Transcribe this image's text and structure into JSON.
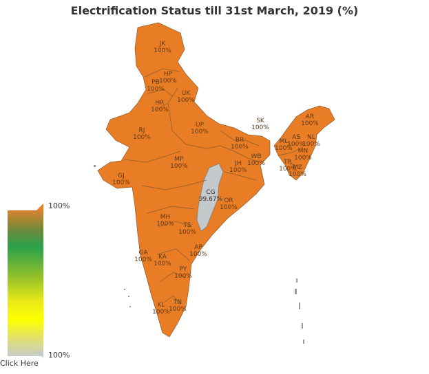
{
  "title": "Electrification Status till 31st March, 2019 (%)",
  "legend": {
    "max_label": "100%",
    "min_label": "100%",
    "click_label": "Click Here"
  },
  "colors": {
    "full": "#e87d25",
    "partial": "#c4c9cc"
  },
  "states": [
    {
      "code": "JK",
      "value": "100%"
    },
    {
      "code": "HP",
      "value": "100%"
    },
    {
      "code": "PB",
      "value": "100%"
    },
    {
      "code": "UK",
      "value": "100%"
    },
    {
      "code": "HR",
      "value": "100%"
    },
    {
      "code": "RJ",
      "value": "100%"
    },
    {
      "code": "UP",
      "value": "100%"
    },
    {
      "code": "SK",
      "value": "100%"
    },
    {
      "code": "AR",
      "value": "100%"
    },
    {
      "code": "BR",
      "value": "100%"
    },
    {
      "code": "AS",
      "value": "100%"
    },
    {
      "code": "NL",
      "value": "100%"
    },
    {
      "code": "ML",
      "value": "100%"
    },
    {
      "code": "MN",
      "value": "100%"
    },
    {
      "code": "WB",
      "value": "100%"
    },
    {
      "code": "TR",
      "value": "100%"
    },
    {
      "code": "MZ",
      "value": "100%"
    },
    {
      "code": "JH",
      "value": "100%"
    },
    {
      "code": "MP",
      "value": "100%"
    },
    {
      "code": "GJ",
      "value": "100%"
    },
    {
      "code": "CG",
      "value": "99.67%"
    },
    {
      "code": "OR",
      "value": "100%"
    },
    {
      "code": "MH",
      "value": "100%"
    },
    {
      "code": "TS",
      "value": "100%"
    },
    {
      "code": "AP",
      "value": "100%"
    },
    {
      "code": "GA",
      "value": "100%"
    },
    {
      "code": "KA",
      "value": "100%"
    },
    {
      "code": "PY",
      "value": "100%"
    },
    {
      "code": "KL",
      "value": "100%"
    },
    {
      "code": "TN",
      "value": "100%"
    }
  ]
}
